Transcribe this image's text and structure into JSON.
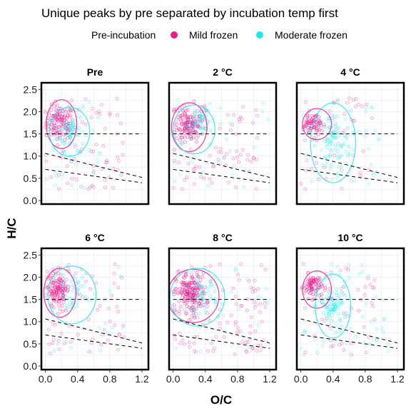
{
  "chart_data": {
    "type": "scatter",
    "title": "Unique peaks by pre separated by incubation temp first",
    "xlabel": "O/C",
    "ylabel": "H/C",
    "xlim": [
      -0.05,
      1.28
    ],
    "ylim": [
      -0.08,
      2.65
    ],
    "x_ticks": [
      "0.0",
      "0.4",
      "0.8",
      "1.2"
    ],
    "x_tick_values": [
      0,
      0.4,
      0.8,
      1.2
    ],
    "y_ticks": [
      "0.0",
      "0.5",
      "1.0",
      "1.5",
      "2.0",
      "2.5"
    ],
    "y_tick_values": [
      0,
      0.5,
      1.0,
      1.5,
      2.0,
      2.5
    ],
    "grid": true,
    "legend": {
      "title": "Pre-incubation",
      "position": "top",
      "entries": [
        {
          "label": "Mild frozen",
          "color": "#f0198c"
        },
        {
          "label": "Moderate frozen",
          "color": "#1ee6f0"
        }
      ]
    },
    "reference_lines": [
      {
        "type": "hline",
        "y": 1.5,
        "style": "dashed"
      },
      {
        "type": "segment",
        "x": [
          0,
          1.2
        ],
        "y": [
          1.06,
          0.52
        ],
        "style": "dashed"
      },
      {
        "type": "segment",
        "x": [
          0,
          1.2
        ],
        "y": [
          0.7,
          0.4
        ],
        "style": "dashed"
      }
    ],
    "panels": [
      {
        "label": "Pre",
        "series": [
          {
            "name": "Mild frozen",
            "cluster": {
              "cx": 0.18,
              "cy": 1.75,
              "sx": 0.16,
              "sy": 0.32
            },
            "scatter": {
              "xmax": 1.0,
              "n": 70
            },
            "ellipse": {
              "cx": 0.2,
              "cy": 1.72,
              "rx": 0.19,
              "ry": 0.55,
              "angle": 0
            }
          },
          {
            "name": "Moderate frozen",
            "cluster": {
              "cx": 0.32,
              "cy": 1.55,
              "sx": 0.15,
              "sy": 0.35
            },
            "scatter": {
              "xmax": 0.7,
              "n": 35
            },
            "ellipse": {
              "cx": 0.3,
              "cy": 1.55,
              "rx": 0.25,
              "ry": 0.55,
              "angle": 0
            }
          }
        ]
      },
      {
        "label": "2 °C",
        "series": [
          {
            "name": "Mild frozen",
            "cluster": {
              "cx": 0.18,
              "cy": 1.7,
              "sx": 0.14,
              "sy": 0.32
            },
            "scatter": {
              "xmax": 1.05,
              "n": 80
            },
            "ellipse": {
              "cx": 0.2,
              "cy": 1.65,
              "rx": 0.22,
              "ry": 0.55,
              "angle": 0
            }
          },
          {
            "name": "Moderate frozen",
            "cluster": {
              "cx": 0.3,
              "cy": 1.75,
              "sx": 0.16,
              "sy": 0.3
            },
            "scatter": {
              "xmax": 1.2,
              "n": 30
            },
            "ellipse": {
              "cx": 0.26,
              "cy": 1.6,
              "rx": 0.26,
              "ry": 0.55,
              "angle": 0
            }
          }
        ]
      },
      {
        "label": "4 °C",
        "series": [
          {
            "name": "Mild frozen",
            "cluster": {
              "cx": 0.16,
              "cy": 1.75,
              "sx": 0.1,
              "sy": 0.2
            },
            "scatter": {
              "xmax": 0.9,
              "n": 45
            },
            "ellipse": {
              "cx": 0.2,
              "cy": 1.72,
              "rx": 0.18,
              "ry": 0.35,
              "angle": 0
            }
          },
          {
            "name": "Moderate frozen",
            "cluster": {
              "cx": 0.4,
              "cy": 1.35,
              "sx": 0.2,
              "sy": 0.55
            },
            "scatter": {
              "xmax": 1.0,
              "n": 45
            },
            "ellipse": {
              "cx": 0.4,
              "cy": 1.3,
              "rx": 0.28,
              "ry": 0.9,
              "angle": 0
            }
          }
        ]
      },
      {
        "label": "6 °C",
        "series": [
          {
            "name": "Mild frozen",
            "cluster": {
              "cx": 0.16,
              "cy": 1.7,
              "sx": 0.12,
              "sy": 0.3
            },
            "scatter": {
              "xmax": 1.0,
              "n": 70
            },
            "ellipse": {
              "cx": 0.18,
              "cy": 1.65,
              "rx": 0.2,
              "ry": 0.55,
              "angle": 0
            }
          },
          {
            "name": "Moderate frozen",
            "cluster": {
              "cx": 0.35,
              "cy": 1.65,
              "sx": 0.16,
              "sy": 0.3
            },
            "scatter": {
              "xmax": 1.0,
              "n": 25
            },
            "ellipse": {
              "cx": 0.33,
              "cy": 1.6,
              "rx": 0.3,
              "ry": 0.65,
              "angle": 0
            }
          }
        ]
      },
      {
        "label": "8 °C",
        "series": [
          {
            "name": "Mild frozen",
            "cluster": {
              "cx": 0.22,
              "cy": 1.65,
              "sx": 0.17,
              "sy": 0.36
            },
            "scatter": {
              "xmax": 1.15,
              "n": 110
            },
            "ellipse": {
              "cx": 0.25,
              "cy": 1.58,
              "rx": 0.32,
              "ry": 0.6,
              "angle": 0
            }
          },
          {
            "name": "Moderate frozen",
            "cluster": {
              "cx": 0.35,
              "cy": 1.6,
              "sx": 0.18,
              "sy": 0.32
            },
            "scatter": {
              "xmax": 1.2,
              "n": 30
            },
            "ellipse": {
              "cx": 0.3,
              "cy": 1.55,
              "rx": 0.34,
              "ry": 0.65,
              "angle": 0
            }
          }
        ]
      },
      {
        "label": "10 °C",
        "series": [
          {
            "name": "Mild frozen",
            "cluster": {
              "cx": 0.15,
              "cy": 1.8,
              "sx": 0.1,
              "sy": 0.22
            },
            "scatter": {
              "xmax": 0.95,
              "n": 50
            },
            "ellipse": {
              "cx": 0.2,
              "cy": 1.72,
              "rx": 0.18,
              "ry": 0.42,
              "angle": 0
            }
          },
          {
            "name": "Moderate frozen",
            "cluster": {
              "cx": 0.4,
              "cy": 1.35,
              "sx": 0.16,
              "sy": 0.4
            },
            "scatter": {
              "xmax": 1.1,
              "n": 50
            },
            "ellipse": {
              "cx": 0.4,
              "cy": 1.35,
              "rx": 0.22,
              "ry": 0.72,
              "angle": 0
            }
          }
        ]
      }
    ]
  }
}
